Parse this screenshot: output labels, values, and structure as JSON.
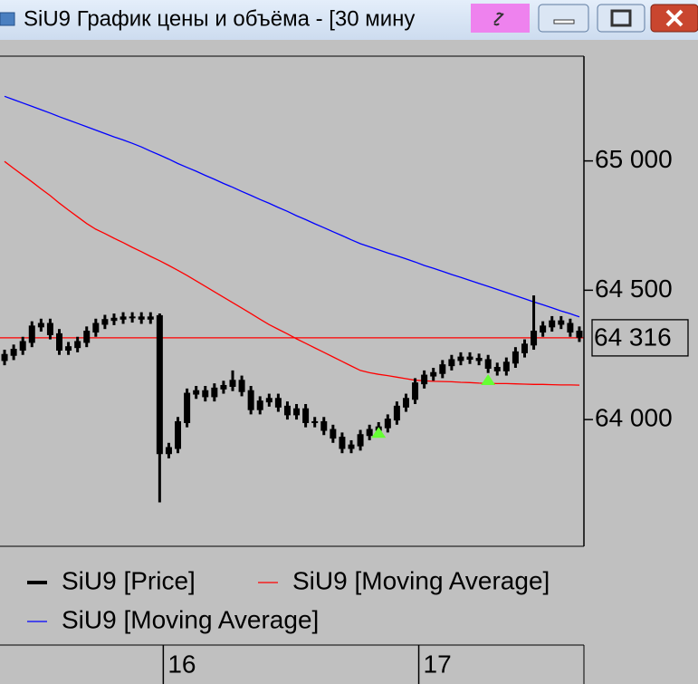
{
  "window": {
    "title": "SiU9 График цены и объёма - [30 мину"
  },
  "chart_data": {
    "type": "candlestick",
    "categories": [
      null,
      null,
      null,
      null,
      null,
      null,
      null,
      null,
      null,
      null,
      null,
      null,
      null,
      null,
      null,
      null,
      null,
      "16",
      null,
      null,
      null,
      null,
      null,
      null,
      null,
      null,
      null,
      null,
      null,
      null,
      null,
      null,
      null,
      null,
      null,
      null,
      null,
      null,
      null,
      null,
      null,
      null,
      null,
      null,
      null,
      "17",
      null,
      null,
      null,
      null,
      null,
      null,
      null,
      null,
      null,
      null,
      null,
      null,
      null,
      null,
      null,
      null,
      null,
      null
    ],
    "ylim": [
      63510,
      65405
    ],
    "yticks": [
      {
        "value": 64000,
        "label": "64 000"
      },
      {
        "value": 64500,
        "label": "64 500"
      },
      {
        "value": 65000,
        "label": "65 000"
      }
    ],
    "last_price": {
      "value": 64316,
      "label": "64 316",
      "color": "#ff0000"
    },
    "series": [
      {
        "name": "SiU9 [Price]",
        "type": "candlestick",
        "color": "#000000",
        "open": [
          64230,
          64250,
          64270,
          64300,
          64360,
          64370,
          64330,
          64270,
          64280,
          64300,
          64340,
          64370,
          64385,
          64390,
          64395,
          64395,
          64390,
          64400,
          63870,
          63890,
          63990,
          64100,
          64110,
          64090,
          64120,
          64130,
          64150,
          64110,
          64040,
          64070,
          64080,
          64050,
          64020,
          64040,
          63990,
          63990,
          63960,
          63930,
          63890,
          63900,
          63940,
          63960,
          63970,
          64000,
          64050,
          64080,
          64140,
          64170,
          64180,
          64210,
          64230,
          64240,
          64235,
          64230,
          64200,
          64190,
          64220,
          64260,
          64290,
          64340,
          64360,
          64380,
          64370,
          64340
        ],
        "high": [
          64270,
          64290,
          64320,
          64380,
          64390,
          64390,
          64350,
          64300,
          64320,
          64360,
          64390,
          64405,
          64410,
          64415,
          64415,
          64415,
          64415,
          64410,
          63910,
          64010,
          64120,
          64130,
          64130,
          64140,
          64150,
          64190,
          64170,
          64130,
          64090,
          64100,
          64100,
          64070,
          64060,
          64060,
          64010,
          64010,
          63980,
          63950,
          63920,
          63960,
          63980,
          63990,
          64020,
          64070,
          64100,
          64160,
          64190,
          64200,
          64230,
          64250,
          64260,
          64260,
          64255,
          64250,
          64220,
          64240,
          64280,
          64310,
          64480,
          64380,
          64400,
          64400,
          64390,
          64360
        ],
        "low": [
          64210,
          64230,
          64250,
          64280,
          64340,
          64310,
          64250,
          64250,
          64260,
          64280,
          64320,
          64350,
          64365,
          64370,
          64375,
          64370,
          64370,
          63680,
          63850,
          63870,
          63970,
          64080,
          64070,
          64070,
          64100,
          64110,
          64090,
          64020,
          64020,
          64050,
          64030,
          64000,
          64000,
          63970,
          63970,
          63940,
          63910,
          63870,
          63870,
          63880,
          63920,
          63940,
          63950,
          63980,
          64030,
          64060,
          64120,
          64150,
          64160,
          64190,
          64210,
          64215,
          64210,
          64180,
          64170,
          64170,
          64200,
          64240,
          64270,
          64320,
          64340,
          64350,
          64320,
          64300
        ],
        "close": [
          64250,
          64270,
          64300,
          64360,
          64370,
          64330,
          64270,
          64280,
          64300,
          64340,
          64370,
          64385,
          64390,
          64395,
          64395,
          64390,
          64395,
          63870,
          63890,
          63990,
          64100,
          64110,
          64090,
          64120,
          64130,
          64150,
          64110,
          64040,
          64070,
          64080,
          64050,
          64020,
          64040,
          63990,
          63990,
          63960,
          63930,
          63890,
          63900,
          63940,
          63960,
          63970,
          64000,
          64050,
          64080,
          64140,
          64170,
          64180,
          64210,
          64230,
          64240,
          64235,
          64230,
          64200,
          64190,
          64220,
          64260,
          64290,
          64340,
          64360,
          64380,
          64370,
          64340,
          64320
        ]
      },
      {
        "name": "SiU9 [Moving Average]",
        "type": "line",
        "color": "#ff0000",
        "values": [
          64998,
          64971,
          64945,
          64919,
          64892,
          64866,
          64837,
          64810,
          64784,
          64758,
          64736,
          64719,
          64701,
          64684,
          64666,
          64649,
          64631,
          64614,
          64596,
          64577,
          64557,
          64536,
          64515,
          64494,
          64473,
          64452,
          64431,
          64410,
          64388,
          64367,
          64349,
          64331,
          64312,
          64295,
          64277,
          64260,
          64242,
          64225,
          64207,
          64190,
          64181,
          64175,
          64170,
          64164,
          64158,
          64152,
          64150,
          64148,
          64147,
          64146,
          64144,
          64143,
          64141,
          64140,
          64139,
          64139,
          64138,
          64137,
          64136,
          64136,
          64135,
          64134,
          64134,
          64133
        ]
      },
      {
        "name": "SiU9 [Moving Average]",
        "type": "line",
        "color": "#0000ff",
        "values": [
          65250,
          65237,
          65224,
          65211,
          65198,
          65185,
          65171,
          65158,
          65145,
          65132,
          65119,
          65106,
          65093,
          65081,
          65068,
          65054,
          65038,
          65023,
          65007,
          64990,
          64975,
          64960,
          64944,
          64929,
          64913,
          64898,
          64882,
          64867,
          64851,
          64836,
          64820,
          64805,
          64788,
          64773,
          64757,
          64742,
          64726,
          64711,
          64695,
          64680,
          64668,
          64656,
          64644,
          64633,
          64621,
          64609,
          64596,
          64585,
          64573,
          64561,
          64550,
          64538,
          64526,
          64515,
          64503,
          64491,
          64479,
          64467,
          64455,
          64444,
          64432,
          64420,
          64409,
          64397
        ]
      }
    ],
    "signals": {
      "color": "#66ff33",
      "points": [
        {
          "index": 41,
          "value": 63947
        },
        {
          "index": 53,
          "value": 64151
        }
      ]
    }
  }
}
